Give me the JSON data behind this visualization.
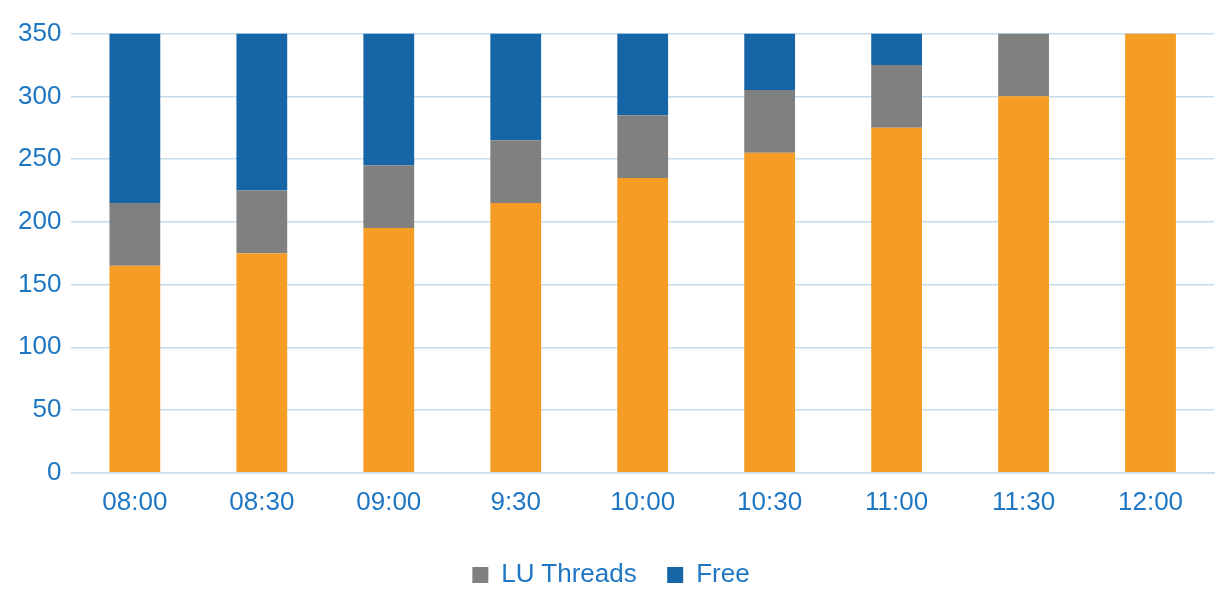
{
  "chart_data": {
    "type": "bar",
    "stacked": true,
    "categories": [
      "08:00",
      "08:30",
      "09:00",
      "9:30",
      "10:00",
      "10:30",
      "11:00",
      "11:30",
      "12:00"
    ],
    "series": [
      {
        "color": "#f59c24",
        "values": [
          165,
          175,
          195,
          215,
          235,
          255,
          275,
          300,
          350
        ]
      },
      {
        "name": "LU Threads",
        "color": "#808080",
        "values": [
          50,
          50,
          50,
          50,
          50,
          50,
          50,
          50,
          0
        ]
      },
      {
        "name": "Free",
        "color": "#1565a7",
        "values": [
          135,
          125,
          105,
          85,
          65,
          45,
          25,
          0,
          0
        ]
      }
    ],
    "ylim": [
      0,
      350
    ],
    "yticks": [
      0,
      50,
      100,
      150,
      200,
      250,
      300,
      350
    ],
    "grid": "y",
    "legend": "bottom"
  }
}
